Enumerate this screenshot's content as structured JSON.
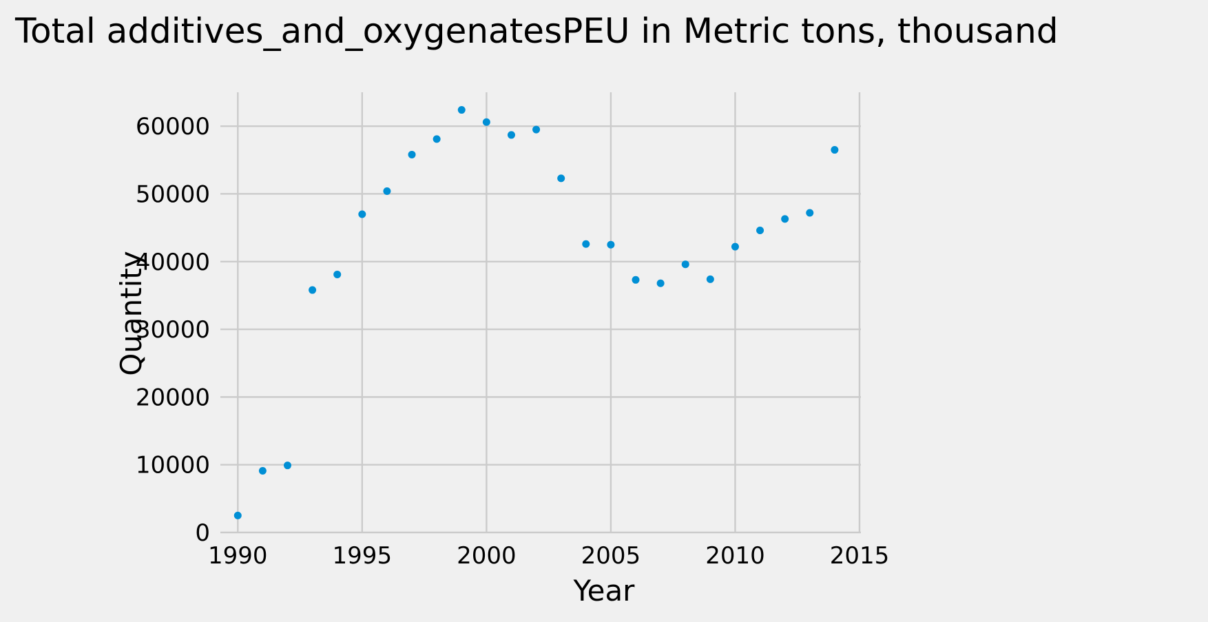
{
  "chart_data": {
    "type": "scatter",
    "title": "Total additives_and_oxygenatesPEU in Metric tons,  thousand",
    "xlabel": "Year",
    "ylabel": "Quantity",
    "xlim": [
      1989.3,
      2015
    ],
    "ylim": [
      0,
      65000
    ],
    "xticks": [
      1990,
      1995,
      2000,
      2005,
      2010,
      2015
    ],
    "yticks": [
      0,
      10000,
      20000,
      30000,
      40000,
      50000,
      60000
    ],
    "grid": true,
    "marker_color": "#008fd5",
    "x": [
      1990,
      1991,
      1992,
      1993,
      1994,
      1995,
      1996,
      1997,
      1998,
      1999,
      2000,
      2001,
      2002,
      2003,
      2004,
      2005,
      2006,
      2007,
      2008,
      2009,
      2010,
      2011,
      2012,
      2013,
      2014
    ],
    "y": [
      2500,
      9100,
      9900,
      35800,
      38100,
      47000,
      50400,
      55800,
      58100,
      62400,
      60600,
      58700,
      59500,
      52300,
      42600,
      42500,
      37300,
      36800,
      39600,
      37400,
      42200,
      44600,
      46300,
      47200,
      56500
    ]
  }
}
